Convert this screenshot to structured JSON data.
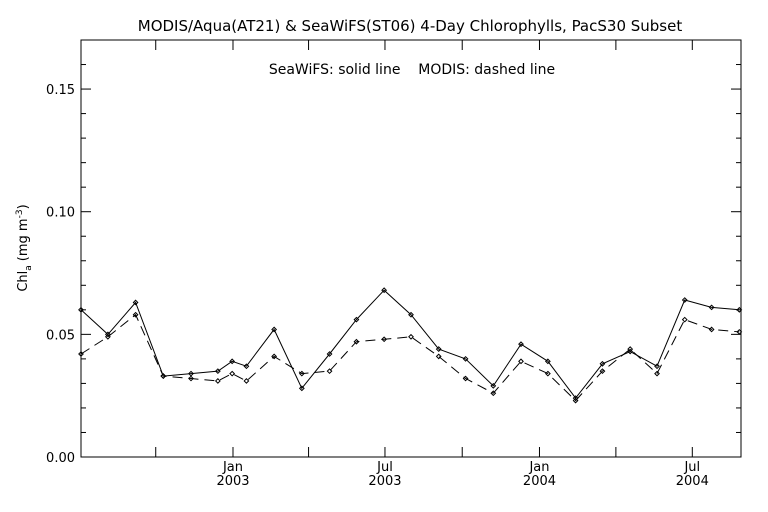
{
  "chart_data": {
    "type": "line",
    "title": "MODIS/Aqua(AT21) & SeaWiFS(ST06) 4-Day Chlorophylls, PacS30 Subset",
    "annotation": "SeaWiFS: solid line    MODIS: dashed line",
    "ylabel_main": "Chl",
    "ylabel_sub": "a",
    "ylabel_unit": "(mg m",
    "ylabel_exp": "-3",
    "ylabel_close": ")",
    "ylim": [
      0.0,
      0.17
    ],
    "yticks": [
      {
        "value": 0.0,
        "label": "0.00"
      },
      {
        "value": 0.05,
        "label": "0.05"
      },
      {
        "value": 0.1,
        "label": "0.10"
      },
      {
        "value": 0.15,
        "label": "0.15"
      }
    ],
    "xlim": [
      "2002-07-04",
      "2004-08-28"
    ],
    "xticks": [
      {
        "date": "2003-01-01",
        "month": "Jan",
        "year": "2003"
      },
      {
        "date": "2003-07-01",
        "month": "Jul",
        "year": "2003"
      },
      {
        "date": "2004-01-01",
        "month": "Jan",
        "year": "2004"
      },
      {
        "date": "2004-07-01",
        "month": "Jul",
        "year": "2004"
      }
    ],
    "x": [
      "2002-07-04",
      "2002-08-05",
      "2002-09-07",
      "2002-10-10",
      "2002-11-12",
      "2002-12-14",
      "2002-12-31",
      "2003-01-17",
      "2003-02-19",
      "2003-03-24",
      "2003-04-26",
      "2003-05-28",
      "2003-06-30",
      "2003-08-01",
      "2003-09-03",
      "2003-10-05",
      "2003-11-07",
      "2003-12-10",
      "2004-01-11",
      "2004-02-13",
      "2004-03-16",
      "2004-04-18",
      "2004-05-20",
      "2004-06-22",
      "2004-07-24",
      "2004-08-26"
    ],
    "series": [
      {
        "name": "SeaWiFS",
        "style": "solid",
        "color": "#000000",
        "values": [
          0.06,
          0.05,
          0.063,
          0.033,
          0.034,
          0.035,
          0.039,
          0.037,
          0.052,
          0.028,
          0.042,
          0.056,
          0.068,
          0.058,
          0.044,
          0.04,
          0.029,
          0.046,
          0.039,
          0.024,
          0.038,
          0.043,
          0.037,
          0.064,
          0.061,
          0.06
        ]
      },
      {
        "name": "MODIS",
        "style": "dashed",
        "color": "#000000",
        "values": [
          0.042,
          0.049,
          0.058,
          0.033,
          0.032,
          0.031,
          0.034,
          0.031,
          0.041,
          0.034,
          0.035,
          0.047,
          0.048,
          0.049,
          0.041,
          0.032,
          0.026,
          0.039,
          0.034,
          0.023,
          0.035,
          0.044,
          0.034,
          0.056,
          0.052,
          0.051
        ]
      }
    ]
  }
}
